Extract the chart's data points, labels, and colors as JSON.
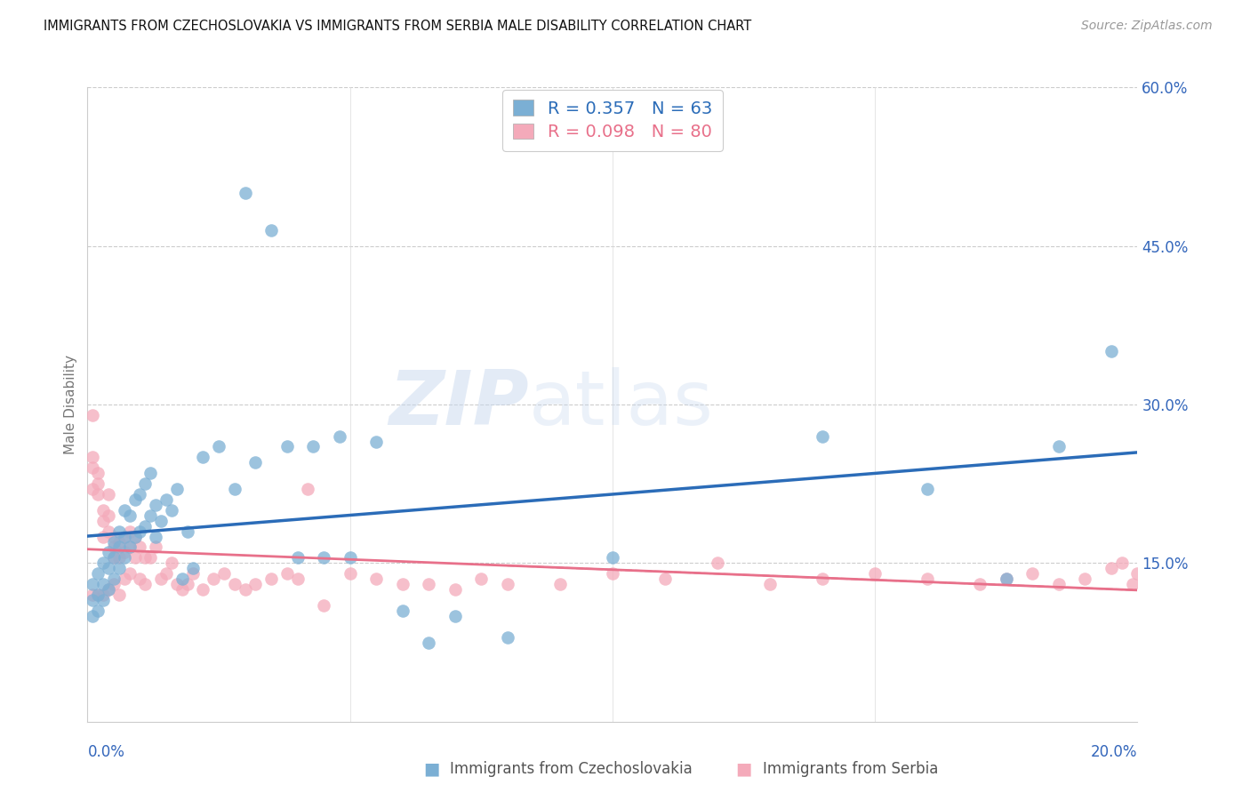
{
  "title": "IMMIGRANTS FROM CZECHOSLOVAKIA VS IMMIGRANTS FROM SERBIA MALE DISABILITY CORRELATION CHART",
  "source": "Source: ZipAtlas.com",
  "ylabel": "Male Disability",
  "legend1_r": "R = 0.357",
  "legend1_n": "N = 63",
  "legend2_r": "R = 0.098",
  "legend2_n": "N = 80",
  "legend1_label": "Immigrants from Czechoslovakia",
  "legend2_label": "Immigrants from Serbia",
  "blue_color": "#7BAFD4",
  "pink_color": "#F4AABA",
  "blue_line_color": "#2B6CB8",
  "pink_line_color": "#E8708A",
  "watermark_zip": "ZIP",
  "watermark_atlas": "atlas",
  "xlim": [
    0.0,
    0.2
  ],
  "ylim": [
    0.0,
    0.6
  ],
  "blue_x": [
    0.001,
    0.001,
    0.001,
    0.002,
    0.002,
    0.002,
    0.003,
    0.003,
    0.003,
    0.004,
    0.004,
    0.004,
    0.005,
    0.005,
    0.005,
    0.006,
    0.006,
    0.006,
    0.007,
    0.007,
    0.007,
    0.008,
    0.008,
    0.009,
    0.009,
    0.01,
    0.01,
    0.011,
    0.011,
    0.012,
    0.012,
    0.013,
    0.013,
    0.014,
    0.015,
    0.016,
    0.017,
    0.018,
    0.019,
    0.02,
    0.022,
    0.025,
    0.028,
    0.03,
    0.032,
    0.035,
    0.038,
    0.04,
    0.043,
    0.045,
    0.048,
    0.05,
    0.055,
    0.06,
    0.065,
    0.07,
    0.08,
    0.1,
    0.14,
    0.16,
    0.175,
    0.185,
    0.195
  ],
  "blue_y": [
    0.13,
    0.115,
    0.1,
    0.14,
    0.12,
    0.105,
    0.15,
    0.13,
    0.115,
    0.16,
    0.145,
    0.125,
    0.17,
    0.155,
    0.135,
    0.18,
    0.165,
    0.145,
    0.2,
    0.175,
    0.155,
    0.195,
    0.165,
    0.21,
    0.175,
    0.215,
    0.18,
    0.225,
    0.185,
    0.235,
    0.195,
    0.205,
    0.175,
    0.19,
    0.21,
    0.2,
    0.22,
    0.135,
    0.18,
    0.145,
    0.25,
    0.26,
    0.22,
    0.5,
    0.245,
    0.465,
    0.26,
    0.155,
    0.26,
    0.155,
    0.27,
    0.155,
    0.265,
    0.105,
    0.075,
    0.1,
    0.08,
    0.155,
    0.27,
    0.22,
    0.135,
    0.26,
    0.35
  ],
  "pink_x": [
    0.001,
    0.001,
    0.001,
    0.001,
    0.001,
    0.002,
    0.002,
    0.002,
    0.002,
    0.003,
    0.003,
    0.003,
    0.003,
    0.004,
    0.004,
    0.004,
    0.004,
    0.005,
    0.005,
    0.005,
    0.005,
    0.006,
    0.006,
    0.006,
    0.007,
    0.007,
    0.007,
    0.008,
    0.008,
    0.008,
    0.009,
    0.009,
    0.01,
    0.01,
    0.011,
    0.011,
    0.012,
    0.013,
    0.014,
    0.015,
    0.016,
    0.017,
    0.018,
    0.019,
    0.02,
    0.022,
    0.024,
    0.026,
    0.028,
    0.03,
    0.032,
    0.035,
    0.038,
    0.04,
    0.042,
    0.045,
    0.05,
    0.055,
    0.06,
    0.065,
    0.07,
    0.075,
    0.08,
    0.09,
    0.1,
    0.11,
    0.12,
    0.13,
    0.14,
    0.15,
    0.16,
    0.17,
    0.175,
    0.18,
    0.185,
    0.19,
    0.195,
    0.197,
    0.199,
    0.2
  ],
  "pink_y": [
    0.29,
    0.25,
    0.24,
    0.22,
    0.12,
    0.235,
    0.225,
    0.215,
    0.12,
    0.2,
    0.19,
    0.175,
    0.12,
    0.215,
    0.195,
    0.18,
    0.125,
    0.175,
    0.165,
    0.155,
    0.13,
    0.17,
    0.155,
    0.12,
    0.175,
    0.16,
    0.135,
    0.18,
    0.165,
    0.14,
    0.175,
    0.155,
    0.165,
    0.135,
    0.155,
    0.13,
    0.155,
    0.165,
    0.135,
    0.14,
    0.15,
    0.13,
    0.125,
    0.13,
    0.14,
    0.125,
    0.135,
    0.14,
    0.13,
    0.125,
    0.13,
    0.135,
    0.14,
    0.135,
    0.22,
    0.11,
    0.14,
    0.135,
    0.13,
    0.13,
    0.125,
    0.135,
    0.13,
    0.13,
    0.14,
    0.135,
    0.15,
    0.13,
    0.135,
    0.14,
    0.135,
    0.13,
    0.135,
    0.14,
    0.13,
    0.135,
    0.145,
    0.15,
    0.13,
    0.14
  ]
}
